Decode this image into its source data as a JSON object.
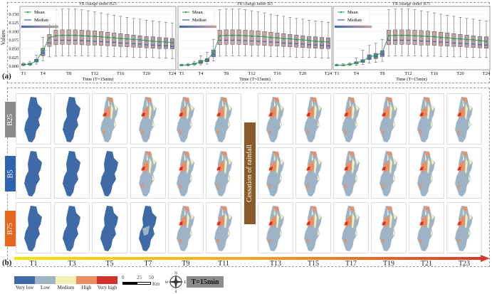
{
  "panel_a_label": "(a)",
  "panel_b_label": "(b)",
  "chart_data": [
    {
      "type": "box",
      "title": "FR change under B25",
      "xlabel": "Time (T=15min)",
      "ylabel": "Values",
      "ylim": [
        0,
        0.16
      ],
      "yticks": [
        "0.000",
        "0.025",
        "0.050",
        "0.075",
        "0.100",
        "0.125",
        "0.150"
      ],
      "xticks": [
        "T1",
        "T4",
        "T8",
        "T12",
        "T16",
        "T20",
        "T24"
      ],
      "legend": [
        "Mean",
        "Median"
      ],
      "legend_position": "top-left",
      "grid": true,
      "categories": [
        "T1",
        "T2",
        "T3",
        "T4",
        "T5",
        "T6",
        "T7",
        "T8",
        "T9",
        "T10",
        "T11",
        "T12",
        "T13",
        "T14",
        "T15",
        "T16",
        "T17",
        "T18",
        "T19",
        "T20",
        "T21",
        "T22",
        "T23",
        "T24"
      ],
      "mean": [
        0.005,
        0.006,
        0.016,
        0.045,
        0.082,
        0.088,
        0.089,
        0.089,
        0.089,
        0.088,
        0.087,
        0.086,
        0.085,
        0.083,
        0.082,
        0.08,
        0.079,
        0.077,
        0.076,
        0.074,
        0.072,
        0.071,
        0.07,
        0.068
      ],
      "median": [
        0.004,
        0.005,
        0.015,
        0.038,
        0.067,
        0.075,
        0.075,
        0.075,
        0.075,
        0.074,
        0.073,
        0.072,
        0.071,
        0.07,
        0.069,
        0.067,
        0.066,
        0.065,
        0.064,
        0.062,
        0.061,
        0.06,
        0.059,
        0.057
      ],
      "q1": [
        0.003,
        0.004,
        0.012,
        0.03,
        0.057,
        0.062,
        0.063,
        0.063,
        0.063,
        0.062,
        0.061,
        0.061,
        0.06,
        0.059,
        0.058,
        0.057,
        0.056,
        0.055,
        0.054,
        0.053,
        0.052,
        0.051,
        0.051,
        0.05
      ],
      "q3": [
        0.007,
        0.009,
        0.02,
        0.052,
        0.092,
        0.104,
        0.105,
        0.105,
        0.105,
        0.104,
        0.103,
        0.102,
        0.1,
        0.098,
        0.096,
        0.094,
        0.092,
        0.09,
        0.088,
        0.086,
        0.085,
        0.083,
        0.082,
        0.08
      ],
      "whisker_low": [
        0.001,
        0.002,
        0.006,
        0.016,
        0.027,
        0.029,
        0.03,
        0.03,
        0.03,
        0.03,
        0.029,
        0.029,
        0.029,
        0.028,
        0.028,
        0.027,
        0.027,
        0.026,
        0.026,
        0.025,
        0.025,
        0.024,
        0.023,
        0.022
      ],
      "whisker_high": [
        0.01,
        0.014,
        0.032,
        0.083,
        0.125,
        0.163,
        0.165,
        0.165,
        0.165,
        0.163,
        0.16,
        0.157,
        0.154,
        0.15,
        0.147,
        0.144,
        0.141,
        0.138,
        0.136,
        0.133,
        0.131,
        0.129,
        0.127,
        0.125
      ]
    },
    {
      "type": "box",
      "title": "FR change under B5",
      "xlabel": "Time (T=15min)",
      "ylim": [
        0,
        0.16
      ],
      "xticks": [
        "T1",
        "T4",
        "T8",
        "T12",
        "T16",
        "T20",
        "T24"
      ],
      "legend": [
        "Mean",
        "Median"
      ],
      "legend_position": "top-left",
      "grid": true,
      "mean": [
        0.003,
        0.004,
        0.007,
        0.013,
        0.018,
        0.039,
        0.088,
        0.089,
        0.089,
        0.089,
        0.088,
        0.087,
        0.086,
        0.085,
        0.083,
        0.082,
        0.08,
        0.079,
        0.077,
        0.076,
        0.074,
        0.072,
        0.071,
        0.07
      ],
      "median": [
        0.003,
        0.004,
        0.006,
        0.012,
        0.016,
        0.033,
        0.075,
        0.075,
        0.075,
        0.075,
        0.074,
        0.073,
        0.072,
        0.071,
        0.07,
        0.069,
        0.067,
        0.066,
        0.065,
        0.064,
        0.062,
        0.061,
        0.06,
        0.059
      ],
      "q1": [
        0.002,
        0.003,
        0.005,
        0.008,
        0.013,
        0.027,
        0.062,
        0.063,
        0.063,
        0.063,
        0.062,
        0.061,
        0.061,
        0.06,
        0.059,
        0.058,
        0.057,
        0.056,
        0.055,
        0.054,
        0.053,
        0.052,
        0.051,
        0.051
      ],
      "q3": [
        0.004,
        0.005,
        0.009,
        0.017,
        0.022,
        0.047,
        0.104,
        0.105,
        0.105,
        0.105,
        0.104,
        0.103,
        0.102,
        0.1,
        0.098,
        0.096,
        0.094,
        0.092,
        0.09,
        0.088,
        0.086,
        0.085,
        0.083,
        0.082
      ],
      "whisker_low": [
        0.001,
        0.001,
        0.002,
        0.004,
        0.006,
        0.015,
        0.029,
        0.03,
        0.03,
        0.03,
        0.03,
        0.029,
        0.029,
        0.029,
        0.028,
        0.028,
        0.027,
        0.027,
        0.026,
        0.026,
        0.025,
        0.025,
        0.024,
        0.023
      ],
      "whisker_high": [
        0.006,
        0.008,
        0.014,
        0.03,
        0.04,
        0.077,
        0.163,
        0.165,
        0.165,
        0.165,
        0.163,
        0.16,
        0.157,
        0.154,
        0.15,
        0.147,
        0.144,
        0.141,
        0.138,
        0.136,
        0.133,
        0.131,
        0.129,
        0.127
      ]
    },
    {
      "type": "box",
      "title": "FR change under B75",
      "xlabel": "Time (T=15min)",
      "ylim": [
        0,
        0.16
      ],
      "xticks": [
        "T1",
        "T4",
        "T8",
        "T12",
        "T16",
        "T20",
        "T24"
      ],
      "legend": [
        "Mean",
        "Median"
      ],
      "legend_position": "top-left",
      "grid": true,
      "mean": [
        0.003,
        0.003,
        0.005,
        0.01,
        0.015,
        0.027,
        0.031,
        0.039,
        0.088,
        0.089,
        0.089,
        0.089,
        0.088,
        0.087,
        0.086,
        0.085,
        0.083,
        0.082,
        0.08,
        0.079,
        0.077,
        0.076,
        0.074,
        0.072
      ],
      "median": [
        0.003,
        0.003,
        0.005,
        0.009,
        0.014,
        0.024,
        0.028,
        0.034,
        0.075,
        0.075,
        0.075,
        0.075,
        0.074,
        0.073,
        0.072,
        0.071,
        0.07,
        0.069,
        0.067,
        0.066,
        0.065,
        0.064,
        0.062,
        0.061
      ],
      "q1": [
        0.002,
        0.002,
        0.004,
        0.007,
        0.011,
        0.019,
        0.022,
        0.028,
        0.062,
        0.063,
        0.063,
        0.063,
        0.062,
        0.061,
        0.061,
        0.06,
        0.059,
        0.058,
        0.057,
        0.056,
        0.055,
        0.054,
        0.053,
        0.052
      ],
      "q3": [
        0.004,
        0.004,
        0.007,
        0.013,
        0.019,
        0.033,
        0.037,
        0.045,
        0.104,
        0.105,
        0.105,
        0.105,
        0.104,
        0.103,
        0.102,
        0.1,
        0.098,
        0.096,
        0.094,
        0.092,
        0.09,
        0.088,
        0.086,
        0.085
      ],
      "whisker_low": [
        0.001,
        0.001,
        0.002,
        0.003,
        0.005,
        0.009,
        0.011,
        0.014,
        0.029,
        0.03,
        0.03,
        0.03,
        0.03,
        0.029,
        0.029,
        0.029,
        0.028,
        0.028,
        0.027,
        0.027,
        0.026,
        0.026,
        0.025,
        0.025
      ],
      "whisker_high": [
        0.006,
        0.007,
        0.01,
        0.024,
        0.046,
        0.06,
        0.066,
        0.077,
        0.163,
        0.165,
        0.165,
        0.165,
        0.163,
        0.16,
        0.157,
        0.154,
        0.15,
        0.147,
        0.144,
        0.141,
        0.138,
        0.136,
        0.133,
        0.131
      ]
    }
  ],
  "colors": {
    "mean": "#2e9e5b",
    "median": "#3f5fbf",
    "box_low": "#3f63ad",
    "box_high": "#c9a4a2",
    "very_low": "#3e6aa8",
    "low": "#9fb3c6",
    "medium": "#f5efb8",
    "high": "#ec8e62",
    "very_high": "#d2322d"
  },
  "maps": {
    "rows": [
      {
        "label": "B25",
        "color": "#8a8a8a",
        "states": [
          "very-low",
          "very-low",
          "risk",
          "risk",
          "risk",
          "risk",
          "risk",
          "risk",
          "risk",
          "risk",
          "risk",
          "risk"
        ]
      },
      {
        "label": "B5",
        "color": "#2f63b0",
        "states": [
          "very-low",
          "very-low",
          "very-low",
          "risk",
          "risk",
          "risk",
          "risk",
          "risk",
          "risk",
          "risk",
          "risk",
          "risk"
        ]
      },
      {
        "label": "B75",
        "color": "#e8661c",
        "states": [
          "very-low",
          "very-low",
          "very-low",
          "partial",
          "risk",
          "risk",
          "risk",
          "risk",
          "risk",
          "risk",
          "risk",
          "risk"
        ]
      }
    ],
    "cessation_label": "Cessation of rainfall",
    "time_labels": [
      "T1",
      "T3",
      "T5",
      "T7",
      "T9",
      "T11",
      "T13",
      "T15",
      "T17",
      "T19",
      "T21",
      "T23"
    ]
  },
  "legend": {
    "classes": [
      "Very low",
      "Low",
      "Medium",
      "High",
      "Very high"
    ],
    "scale_ticks": [
      "0",
      "25",
      "50"
    ],
    "scale_unit": "Km",
    "compass": [
      "N",
      "E",
      "S",
      "W"
    ],
    "time_step": "T=15min"
  }
}
